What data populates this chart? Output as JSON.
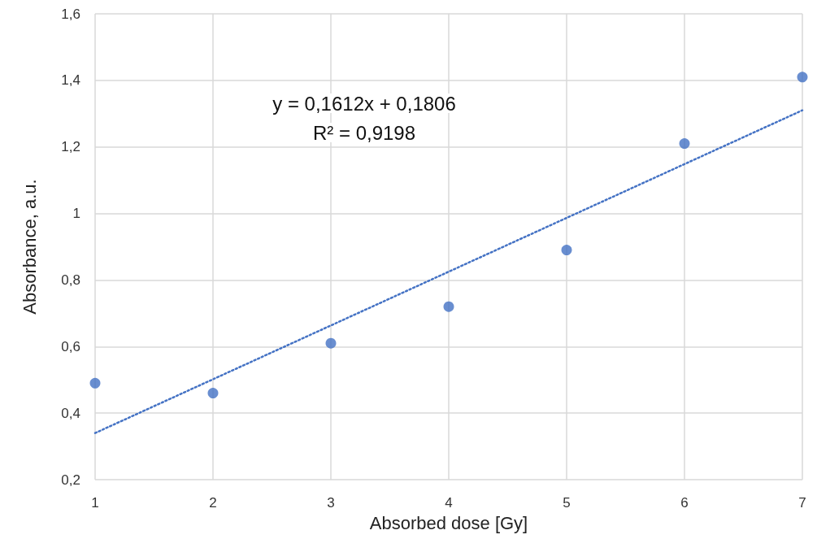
{
  "chart_data": {
    "type": "scatter",
    "xlabel": "Absorbed dose [Gy]",
    "ylabel": "Absorbance, a.u.",
    "x": [
      1,
      2,
      3,
      4,
      5,
      6,
      7
    ],
    "series": [
      {
        "color": "#4472c4",
        "marker": "circle",
        "values": [
          0.49,
          0.46,
          0.61,
          0.72,
          0.89,
          1.21,
          1.41
        ]
      },
      {
        "type": "line",
        "color": "#4472c4",
        "marker": "none",
        "line_style": "dotted",
        "x": [
          1,
          7
        ],
        "values": [
          0.34,
          1.31
        ]
      }
    ],
    "xlim": [
      1,
      7
    ],
    "xticks": [
      1,
      2,
      3,
      4,
      5,
      6,
      7
    ],
    "ylim": [
      0.2,
      1.6
    ],
    "yticks": [
      {
        "value": 0.2,
        "label": "0,2"
      },
      {
        "value": 0.4,
        "label": "0,4"
      },
      {
        "value": 0.6,
        "label": "0,6"
      },
      {
        "value": 0.8,
        "label": "0,8"
      },
      1,
      {
        "value": 1.2,
        "label": "1,2"
      },
      {
        "value": 1.4,
        "label": "1,4"
      },
      {
        "value": 1.6,
        "label": "1,6"
      }
    ],
    "grid": true,
    "annotations": [
      "y = 0,1612x + 0,1806",
      "R² = 0,9198"
    ]
  }
}
